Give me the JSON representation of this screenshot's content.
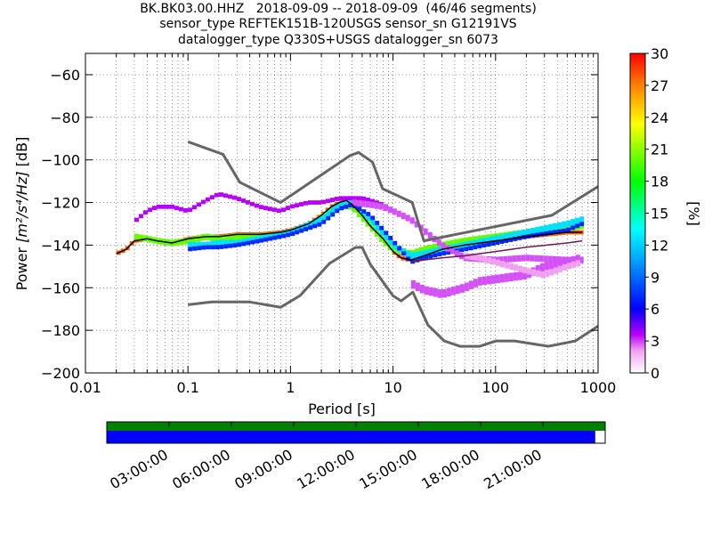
{
  "title": {
    "line1": "BK.BK03.00.HHZ   2018-09-09 -- 2018-09-09  (46/46 segments)",
    "line2": "sensor_type REFTEK151B-120USGS sensor_sn G12191VS",
    "line3": "datalogger_type Q330S+USGS datalogger_sn 6073"
  },
  "colors": {
    "noise_model": "#666666",
    "mode_line": "#000000",
    "mean_line": "#6e1a4f",
    "coverage_top": "#008000",
    "coverage_bottom": "#0000ff",
    "grid": "#000000"
  },
  "chart_data": [
    {
      "type": "heatmap",
      "name": "probabilistic power spectral density",
      "xlabel": "Period [s]",
      "ylabel_main": "Power ",
      "ylabel_units": "[m²/s⁴/Hz]",
      "ylabel_suffix": " [dB]",
      "x_scale": "log",
      "xlim": [
        0.01,
        1000
      ],
      "ylim": [
        -200,
        -50
      ],
      "x_ticks": [
        0.01,
        0.1,
        1,
        10,
        100,
        1000
      ],
      "x_tick_labels": [
        "0.01",
        "0.1",
        "1",
        "10",
        "100",
        "1000"
      ],
      "y_ticks": [
        -200,
        -180,
        -160,
        -140,
        -120,
        -100,
        -80,
        -60
      ],
      "y_tick_labels": [
        "−200",
        "−180",
        "−160",
        "−140",
        "−120",
        "−100",
        "−80",
        "−60"
      ],
      "grid": true,
      "colorbar": {
        "label": "[%]",
        "range": [
          0,
          30
        ],
        "ticks": [
          0,
          3,
          6,
          9,
          12,
          15,
          18,
          21,
          24,
          27,
          30
        ],
        "tick_labels": [
          "0",
          "3",
          "6",
          "9",
          "12",
          "15",
          "18",
          "21",
          "24",
          "27",
          "30"
        ],
        "colormap": "pqlx"
      },
      "noise_models": [
        {
          "name": "NHNM",
          "x": [
            0.1,
            0.22,
            0.32,
            0.8,
            3.8,
            4.6,
            6.3,
            7.9,
            15.4,
            20,
            354.8,
            1000
          ],
          "y": [
            -91.5,
            -97.4,
            -110.5,
            -120,
            -98,
            -96.5,
            -101,
            -113.5,
            -120,
            -138,
            -126,
            -112.5
          ]
        },
        {
          "name": "NLNM",
          "x": [
            0.1,
            0.17,
            0.4,
            0.8,
            1.24,
            2.4,
            4.3,
            5,
            6,
            10,
            12,
            15.6,
            21.9,
            31.6,
            45,
            70,
            101,
            154,
            328,
            600,
            1000
          ],
          "y": [
            -168,
            -166.7,
            -166.7,
            -169.2,
            -163.7,
            -148.6,
            -141.1,
            -141.1,
            -149,
            -163.8,
            -166.2,
            -162.1,
            -177.5,
            -185,
            -187.5,
            -187.5,
            -185,
            -185,
            -187.5,
            -185,
            -178
          ]
        }
      ],
      "mode_line": {
        "x": [
          0.02,
          0.025,
          0.03,
          0.04,
          0.05,
          0.07,
          0.1,
          0.15,
          0.2,
          0.3,
          0.5,
          0.8,
          1,
          1.5,
          2,
          2.5,
          3,
          3.5,
          4,
          5,
          6,
          8,
          10,
          12,
          15,
          20,
          30,
          50,
          70,
          100,
          200,
          500,
          700
        ],
        "y": [
          -144,
          -142,
          -138,
          -137,
          -138,
          -139,
          -137,
          -136,
          -136,
          -135,
          -135,
          -134,
          -133,
          -130,
          -126,
          -122,
          -120,
          -119,
          -121,
          -126,
          -131,
          -137,
          -143,
          -146,
          -147,
          -145,
          -142,
          -140,
          -139,
          -138,
          -136,
          -134,
          -134
        ]
      },
      "mean_line": {
        "x": [
          15,
          20,
          30,
          50,
          70,
          100,
          200,
          500,
          700
        ],
        "y": [
          -148,
          -147,
          -146,
          -145,
          -144,
          -143,
          -141,
          -139,
          -138
        ]
      },
      "density_bands": [
        {
          "x": [
            0.02,
            0.025,
            0.03,
            0.04,
            0.05,
            0.07,
            0.1,
            0.15,
            0.2,
            0.3,
            0.5,
            0.8,
            1,
            1.5,
            2,
            2.5,
            3,
            3.5,
            4,
            5,
            6,
            8,
            10,
            12,
            15,
            20,
            30,
            50,
            70,
            100,
            200,
            500,
            700
          ],
          "y": [
            -144,
            -142,
            -138,
            -137,
            -138,
            -139,
            -137,
            -136,
            -136,
            -135,
            -135,
            -134,
            -133,
            -130,
            -126,
            -122,
            -120,
            -119,
            -121,
            -126,
            -131,
            -137,
            -143,
            -146,
            -147,
            -145,
            -142,
            -140,
            -139,
            -138,
            -136,
            -134,
            -134
          ],
          "level": 28,
          "width": 2
        },
        {
          "x": [
            0.03,
            0.04,
            0.05,
            0.07,
            0.1,
            0.15,
            0.2,
            0.3,
            0.5,
            0.8,
            1,
            1.5,
            2,
            3,
            4,
            6,
            8,
            10,
            15,
            20,
            30,
            50,
            100,
            200,
            500,
            700
          ],
          "y": [
            -136,
            -137,
            -138,
            -139,
            -138,
            -136,
            -137,
            -136,
            -136,
            -135,
            -134,
            -131,
            -127,
            -121,
            -122,
            -131,
            -138,
            -142,
            -144,
            -142,
            -140,
            -138,
            -136,
            -134,
            -132,
            -131
          ],
          "level": 20,
          "width": 3
        },
        {
          "x": [
            0.1,
            0.15,
            0.2,
            0.3,
            0.5,
            0.8,
            1,
            2,
            3,
            4,
            6,
            10,
            15,
            20,
            30,
            50,
            100,
            200,
            500,
            700
          ],
          "y": [
            -140,
            -140,
            -139,
            -139,
            -137,
            -135,
            -134,
            -128,
            -121,
            -120,
            -128,
            -140,
            -145,
            -144,
            -142,
            -140,
            -137,
            -134,
            -130,
            -128
          ],
          "level": 12,
          "width": 3
        },
        {
          "x": [
            0.1,
            0.15,
            0.2,
            0.3,
            0.5,
            0.8,
            1,
            2,
            3,
            4,
            6,
            10,
            15,
            20,
            30,
            50,
            100,
            200,
            500,
            700
          ],
          "y": [
            -142,
            -141,
            -141,
            -140,
            -138,
            -136,
            -135,
            -130,
            -123,
            -121,
            -126,
            -138,
            -148,
            -146,
            -144,
            -142,
            -139,
            -136,
            -133,
            -130
          ],
          "level": 7,
          "width": 2
        },
        {
          "x": [
            0.03,
            0.04,
            0.05,
            0.07,
            0.1,
            0.15,
            0.2,
            0.3,
            0.5,
            0.8,
            1,
            1.5,
            2,
            3,
            4,
            5,
            6,
            8,
            10
          ],
          "y": [
            -129,
            -124,
            -122,
            -122,
            -124,
            -119,
            -116,
            -118,
            -122,
            -124,
            -122,
            -120,
            -120,
            -118,
            -118,
            -118,
            -119,
            -121,
            -124
          ],
          "level": 4,
          "width": 2
        },
        {
          "x": [
            4,
            6,
            8,
            10,
            15,
            20,
            30,
            50,
            100,
            200,
            500,
            700
          ],
          "y": [
            -120,
            -121,
            -122,
            -124,
            -128,
            -133,
            -140,
            -146,
            -147,
            -146,
            -147,
            -147
          ],
          "level": 3,
          "width": 3
        },
        {
          "x": [
            15,
            20,
            30,
            50,
            70,
            100,
            200,
            300,
            500,
            700
          ],
          "y": [
            -158,
            -161,
            -163,
            -160,
            -157,
            -156,
            -154,
            -150,
            -148,
            -146
          ],
          "level": 3,
          "width": 4
        },
        {
          "x": [
            50,
            70,
            100,
            200,
            300,
            500,
            700
          ],
          "y": [
            -145,
            -146,
            -148,
            -152,
            -154,
            -150,
            -148
          ],
          "level": 2,
          "width": 3
        }
      ]
    },
    {
      "type": "table",
      "name": "data coverage",
      "ticks": [
        "03:00:00",
        "06:00:00",
        "09:00:00",
        "12:00:00",
        "15:00:00",
        "18:00:00",
        "21:00:00"
      ],
      "tick_hours": [
        3,
        6,
        9,
        12,
        15,
        18,
        21
      ],
      "range_hours": [
        0,
        24
      ],
      "coverage_end_fraction": 0.98
    }
  ]
}
